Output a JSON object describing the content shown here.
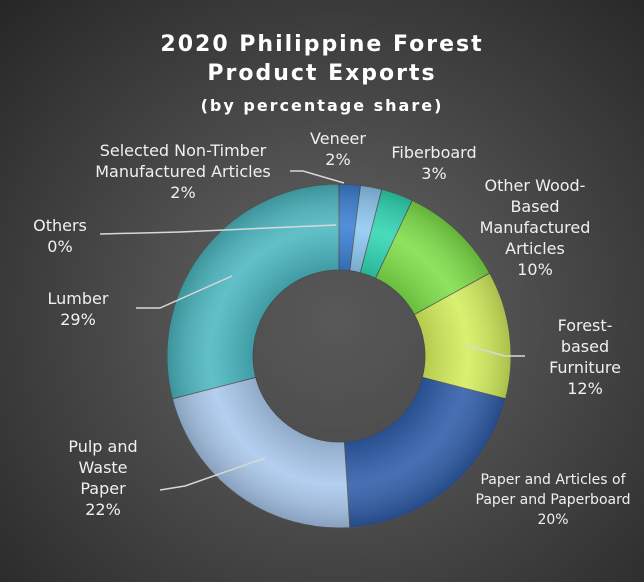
{
  "chart_data": {
    "type": "donut",
    "title": "2020 Philippine Forest Product Exports",
    "subtitle": "(by percentage share)",
    "categories": [
      "Selected Non-Timber Manufactured Articles",
      "Veneer",
      "Fiberboard",
      "Other Wood-Based Manufactured Articles",
      "Forest-based Furniture",
      "Paper and Articles of Paper and Paperboard",
      "Pulp and Waste Paper",
      "Lumber",
      "Others"
    ],
    "values": [
      2,
      2,
      3,
      10,
      12,
      20,
      22,
      29,
      0
    ],
    "value_labels": [
      "2%",
      "2%",
      "3%",
      "10%",
      "12%",
      "20%",
      "22%",
      "29%",
      "0%"
    ],
    "colors": [
      "#3b7fd4",
      "#8ec8f2",
      "#2fd6b2",
      "#7ddf48",
      "#d3ee5c",
      "#2e5ca8",
      "#a9c8ec",
      "#4bb7c0",
      "#9aa0a6"
    ]
  }
}
